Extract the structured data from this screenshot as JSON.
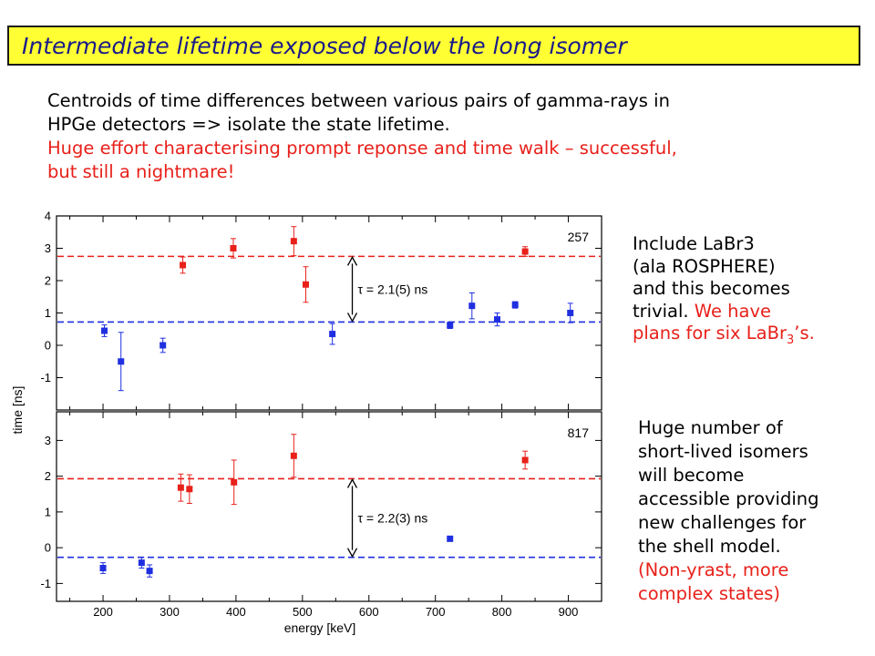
{
  "title": "Intermediate lifetime exposed below the long isomer",
  "intro": {
    "black_lines": [
      "Centroids of time differences between various pairs of gamma-rays in",
      "HPGe detectors => isolate the state lifetime."
    ],
    "red_lines": [
      "Huge effort characterising prompt reponse and time walk – successful,",
      "but still a nightmare!"
    ]
  },
  "side_top": {
    "line1": "Include LaBr3",
    "line2": "(ala ROSPHERE)",
    "line3": "and this becomes",
    "line4_black": "trivial.",
    "line4_red": " We have",
    "line5_red_pre": "plans for six LaBr",
    "line5_red_sub": "3",
    "line5_red_post": "’s."
  },
  "side_bottom": {
    "black_lines": [
      "Huge number of",
      "short-lived isomers",
      "will become",
      "accessible providing",
      "new challenges for",
      "the shell model."
    ],
    "red_lines": [
      "(Non-yrast, more",
      "complex states)"
    ]
  },
  "colors": {
    "red": "#e8201a",
    "blue": "#1f2fe0",
    "title_bg": "#ffff33",
    "title_fg": "#1a1a8a"
  },
  "chart_data": [
    {
      "type": "scatter",
      "panel": "top",
      "tag": "257",
      "xlabel": "",
      "ylabel": "time [ns]",
      "xlim": [
        130,
        950
      ],
      "ylim": [
        -2,
        4
      ],
      "yticks": [
        -1,
        0,
        1,
        2,
        3,
        4
      ],
      "series": [
        {
          "color": "red",
          "points": [
            {
              "x": 320,
              "y": 2.48,
              "err": 0.25
            },
            {
              "x": 396,
              "y": 3.0,
              "err": 0.3
            },
            {
              "x": 487,
              "y": 3.22,
              "err": 0.45
            },
            {
              "x": 505,
              "y": 1.88,
              "err": 0.55
            },
            {
              "x": 835,
              "y": 2.9,
              "err": 0.15
            }
          ]
        },
        {
          "color": "blue",
          "points": [
            {
              "x": 202,
              "y": 0.45,
              "err": 0.18
            },
            {
              "x": 227,
              "y": -0.5,
              "err": 0.9
            },
            {
              "x": 290,
              "y": 0.0,
              "err": 0.22
            },
            {
              "x": 545,
              "y": 0.35,
              "err": 0.32
            },
            {
              "x": 722,
              "y": 0.62,
              "err": 0.1
            },
            {
              "x": 755,
              "y": 1.22,
              "err": 0.4
            },
            {
              "x": 793,
              "y": 0.8,
              "err": 0.2
            },
            {
              "x": 820,
              "y": 1.25,
              "err": 0.1
            },
            {
              "x": 903,
              "y": 1.0,
              "err": 0.3
            }
          ]
        }
      ],
      "reference_lines": [
        {
          "color": "red",
          "y": 2.75
        },
        {
          "color": "blue",
          "y": 0.72
        }
      ],
      "annotation": {
        "text": "τ = 2.1(5) ns",
        "x": 575,
        "y_from": 0.72,
        "y_to": 2.75
      }
    },
    {
      "type": "scatter",
      "panel": "bottom",
      "tag": "817",
      "xlabel": "energy [keV]",
      "ylabel": "",
      "xlim": [
        130,
        950
      ],
      "ylim": [
        -1.5,
        3.8
      ],
      "yticks": [
        -1,
        0,
        1,
        2,
        3
      ],
      "xticks": [
        200,
        300,
        400,
        500,
        600,
        700,
        800,
        900
      ],
      "series": [
        {
          "color": "red",
          "points": [
            {
              "x": 317,
              "y": 1.68,
              "err": 0.38
            },
            {
              "x": 330,
              "y": 1.64,
              "err": 0.4
            },
            {
              "x": 397,
              "y": 1.83,
              "err": 0.62
            },
            {
              "x": 487,
              "y": 2.57,
              "err": 0.6
            },
            {
              "x": 835,
              "y": 2.45,
              "err": 0.25
            }
          ]
        },
        {
          "color": "blue",
          "points": [
            {
              "x": 200,
              "y": -0.57,
              "err": 0.15
            },
            {
              "x": 258,
              "y": -0.42,
              "err": 0.15
            },
            {
              "x": 270,
              "y": -0.65,
              "err": 0.17
            },
            {
              "x": 722,
              "y": 0.25,
              "err": 0.05
            }
          ]
        }
      ],
      "reference_lines": [
        {
          "color": "red",
          "y": 1.93
        },
        {
          "color": "blue",
          "y": -0.27
        }
      ],
      "annotation": {
        "text": "τ = 2.2(3) ns",
        "x": 575,
        "y_from": -0.27,
        "y_to": 1.93
      }
    }
  ]
}
